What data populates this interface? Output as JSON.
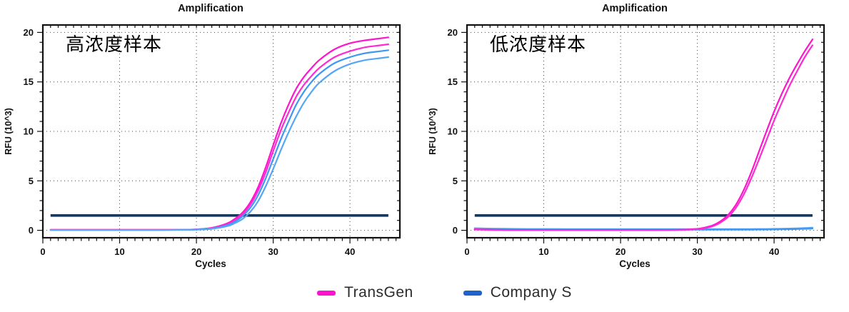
{
  "legend": {
    "items": [
      {
        "label": "TransGen",
        "color": "#ff14ce"
      },
      {
        "label": "Company S",
        "color": "#1f62c9"
      }
    ]
  },
  "chart_data": [
    {
      "type": "line",
      "title": "Amplification",
      "annotation": "高浓度样本",
      "xlabel": "Cycles",
      "ylabel": "RFU (10^3)",
      "xlim": [
        0,
        46.5
      ],
      "ylim": [
        -0.75,
        20.75
      ],
      "xticks_major": [
        0,
        10,
        20,
        30,
        40
      ],
      "yticks_major": [
        0,
        5,
        10,
        15,
        20
      ],
      "minor_tick_step": 1,
      "grid": "dotted",
      "threshold": {
        "value": 1.5,
        "x_start": 1,
        "x_end": 45,
        "color": "#17375d"
      },
      "series": [
        {
          "name": "TransGen rep1",
          "color": "#ff14ce",
          "x": [
            1,
            3,
            5,
            8,
            10,
            13,
            15,
            18,
            20,
            22,
            24,
            25,
            26,
            27,
            28,
            29,
            30,
            31,
            32,
            33,
            34,
            35,
            36,
            38,
            40,
            42,
            44,
            45
          ],
          "y": [
            0.05,
            0.05,
            0.05,
            0.05,
            0.05,
            0.05,
            0.05,
            0.06,
            0.1,
            0.25,
            0.7,
            1.15,
            1.8,
            2.8,
            4.3,
            6.3,
            8.6,
            10.8,
            12.7,
            14.3,
            15.5,
            16.4,
            17.2,
            18.3,
            18.9,
            19.2,
            19.4,
            19.5
          ]
        },
        {
          "name": "TransGen rep2",
          "color": "#ff2ad2",
          "x": [
            1,
            3,
            5,
            8,
            10,
            13,
            15,
            18,
            20,
            22,
            24,
            25,
            26,
            27,
            28,
            29,
            30,
            31,
            32,
            33,
            34,
            35,
            36,
            38,
            40,
            42,
            44,
            45
          ],
          "y": [
            0.05,
            0.05,
            0.05,
            0.05,
            0.05,
            0.05,
            0.05,
            0.06,
            0.1,
            0.22,
            0.62,
            1.02,
            1.62,
            2.55,
            3.95,
            5.8,
            8.0,
            10.1,
            11.9,
            13.5,
            14.7,
            15.6,
            16.4,
            17.5,
            18.1,
            18.5,
            18.7,
            18.8
          ]
        },
        {
          "name": "Company S rep1",
          "color": "#3e97f2",
          "x": [
            1,
            3,
            5,
            8,
            10,
            13,
            15,
            18,
            20,
            22,
            24,
            25,
            26,
            27,
            28,
            29,
            30,
            31,
            32,
            33,
            34,
            35,
            36,
            38,
            40,
            42,
            44,
            45
          ],
          "y": [
            0.04,
            0.04,
            0.04,
            0.04,
            0.04,
            0.04,
            0.04,
            0.05,
            0.08,
            0.18,
            0.52,
            0.88,
            1.42,
            2.25,
            3.5,
            5.2,
            7.2,
            9.2,
            11.0,
            12.7,
            14.0,
            15.0,
            15.8,
            16.9,
            17.5,
            17.9,
            18.1,
            18.2
          ]
        },
        {
          "name": "Company S rep2",
          "color": "#55a6f5",
          "x": [
            1,
            3,
            5,
            8,
            10,
            13,
            15,
            18,
            20,
            22,
            24,
            25,
            26,
            27,
            28,
            29,
            30,
            31,
            32,
            33,
            34,
            35,
            36,
            38,
            40,
            42,
            44,
            45
          ],
          "y": [
            0.04,
            0.04,
            0.04,
            0.04,
            0.04,
            0.04,
            0.04,
            0.05,
            0.07,
            0.15,
            0.42,
            0.72,
            1.15,
            1.85,
            2.9,
            4.4,
            6.2,
            8.1,
            9.9,
            11.5,
            12.9,
            14.0,
            14.9,
            16.1,
            16.8,
            17.2,
            17.4,
            17.5
          ]
        }
      ]
    },
    {
      "type": "line",
      "title": "Amplification",
      "annotation": "低浓度样本",
      "xlabel": "Cycles",
      "ylabel": "RFU (10^3)",
      "xlim": [
        0,
        46.5
      ],
      "ylim": [
        -0.75,
        20.75
      ],
      "xticks_major": [
        0,
        10,
        20,
        30,
        40
      ],
      "yticks_major": [
        0,
        5,
        10,
        15,
        20
      ],
      "minor_tick_step": 1,
      "grid": "dotted",
      "threshold": {
        "value": 1.5,
        "x_start": 1,
        "x_end": 45,
        "color": "#17375d"
      },
      "series": [
        {
          "name": "Company S rep1",
          "color": "#55a6f5",
          "x": [
            1,
            3,
            5,
            8,
            10,
            13,
            15,
            18,
            20,
            23,
            25,
            28,
            30,
            31,
            32,
            33,
            34,
            35,
            36,
            37,
            38,
            39,
            40,
            41,
            42,
            43,
            44,
            45
          ],
          "y": [
            0.22,
            0.18,
            0.16,
            0.14,
            0.14,
            0.13,
            0.13,
            0.13,
            0.13,
            0.13,
            0.13,
            0.13,
            0.13,
            0.13,
            0.13,
            0.13,
            0.13,
            0.13,
            0.13,
            0.13,
            0.14,
            0.14,
            0.15,
            0.16,
            0.18,
            0.2,
            0.23,
            0.27
          ]
        },
        {
          "name": "Company S rep2",
          "color": "#3e97f2",
          "x": [
            1,
            3,
            5,
            8,
            10,
            13,
            15,
            18,
            20,
            23,
            25,
            28,
            30,
            31,
            32,
            33,
            34,
            35,
            36,
            37,
            38,
            39,
            40,
            41,
            42,
            43,
            44,
            45
          ],
          "y": [
            0.14,
            0.11,
            0.09,
            0.08,
            0.08,
            0.07,
            0.07,
            0.07,
            0.07,
            0.07,
            0.07,
            0.07,
            0.07,
            0.07,
            0.07,
            0.07,
            0.07,
            0.07,
            0.07,
            0.07,
            0.08,
            0.08,
            0.09,
            0.1,
            0.11,
            0.13,
            0.15,
            0.18
          ]
        },
        {
          "name": "TransGen rep1",
          "color": "#ff14ce",
          "x": [
            1,
            3,
            5,
            8,
            10,
            13,
            15,
            18,
            20,
            23,
            25,
            28,
            30,
            31,
            32,
            33,
            34,
            35,
            36,
            37,
            38,
            39,
            40,
            41,
            42,
            43,
            44,
            45
          ],
          "y": [
            0.1,
            0.06,
            0.04,
            0.03,
            0.03,
            0.03,
            0.03,
            0.03,
            0.03,
            0.03,
            0.03,
            0.06,
            0.15,
            0.28,
            0.5,
            0.9,
            1.55,
            2.55,
            4.0,
            5.8,
            7.9,
            10.0,
            12.0,
            13.8,
            15.4,
            16.8,
            18.1,
            19.3
          ]
        },
        {
          "name": "TransGen rep2",
          "color": "#ff2ad2",
          "x": [
            1,
            3,
            5,
            8,
            10,
            13,
            15,
            18,
            20,
            23,
            25,
            28,
            30,
            31,
            32,
            33,
            34,
            35,
            36,
            37,
            38,
            39,
            40,
            41,
            42,
            43,
            44,
            45
          ],
          "y": [
            0.08,
            0.05,
            0.03,
            0.02,
            0.02,
            0.02,
            0.02,
            0.02,
            0.02,
            0.02,
            0.02,
            0.05,
            0.12,
            0.23,
            0.42,
            0.78,
            1.35,
            2.25,
            3.55,
            5.2,
            7.1,
            9.1,
            11.1,
            12.9,
            14.6,
            16.1,
            17.5,
            18.7
          ]
        }
      ]
    }
  ]
}
